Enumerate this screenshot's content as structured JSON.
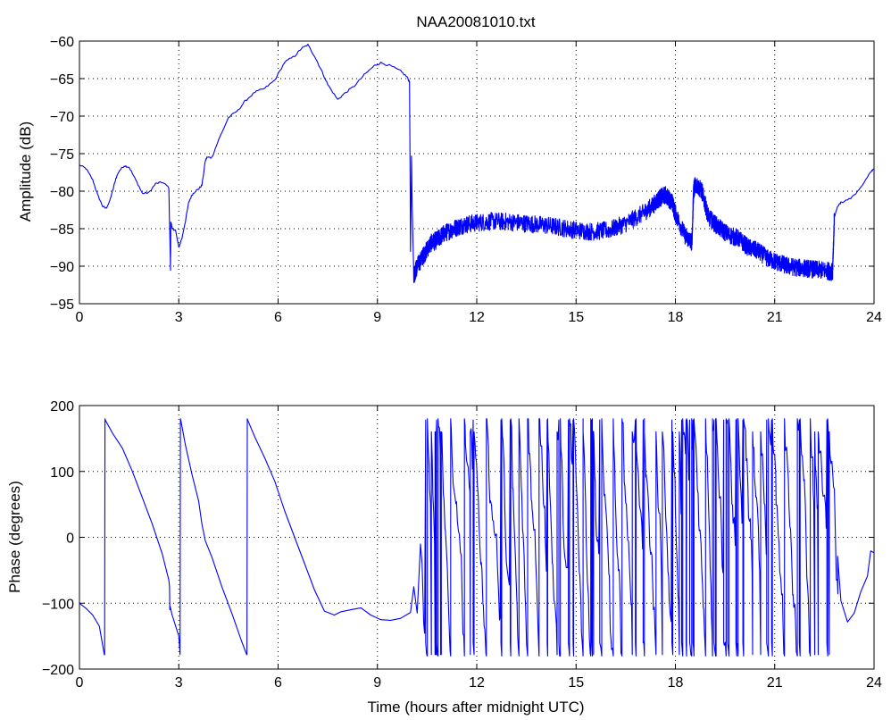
{
  "figure": {
    "title": "NAA20081010.txt"
  },
  "chart_data": [
    {
      "type": "line",
      "title": "NAA20081010.txt",
      "xlabel": "",
      "ylabel": "Amplitude (dB)",
      "xlim": [
        0,
        24
      ],
      "ylim": [
        -95,
        -60
      ],
      "xticks": [
        0,
        3,
        6,
        9,
        12,
        15,
        18,
        21,
        24
      ],
      "yticks": [
        -95,
        -90,
        -85,
        -80,
        -75,
        -70,
        -65,
        -60
      ],
      "grid": true,
      "color": "#0000ff",
      "x": [
        0,
        0.2,
        0.4,
        0.55,
        0.7,
        0.8,
        0.9,
        1.0,
        1.1,
        1.2,
        1.35,
        1.5,
        1.7,
        1.9,
        2.1,
        2.3,
        2.5,
        2.7,
        2.75,
        2.76,
        2.8,
        2.9,
        3.0,
        3.1,
        3.2,
        3.3,
        3.4,
        3.5,
        3.6,
        3.7,
        3.8,
        3.85,
        4.0,
        4.2,
        4.5,
        4.8,
        5.0,
        5.3,
        5.6,
        5.9,
        6.2,
        6.5,
        6.7,
        6.9,
        7.1,
        7.3,
        7.5,
        7.8,
        8.0,
        8.3,
        8.6,
        8.9,
        9.1,
        9.4,
        9.7,
        9.9,
        9.95,
        9.97,
        10.0,
        10.03,
        10.05,
        10.1,
        10.2,
        10.4,
        10.6,
        10.8,
        11.0,
        11.3,
        11.6,
        12.0,
        12.5,
        13.0,
        13.5,
        14.0,
        14.5,
        15.0,
        15.5,
        16.0,
        16.5,
        17.0,
        17.3,
        17.5,
        17.7,
        17.9,
        18.0,
        18.3,
        18.5,
        18.55,
        18.6,
        18.8,
        19.0,
        19.3,
        19.6,
        19.9,
        20.2,
        20.5,
        20.8,
        21.1,
        21.4,
        21.7,
        22.0,
        22.3,
        22.6,
        22.75,
        22.8,
        22.9,
        23.0,
        23.3,
        23.6,
        23.9,
        24.0
      ],
      "y": [
        -76.5,
        -77,
        -78.5,
        -80.5,
        -82,
        -82.3,
        -81.5,
        -80,
        -78.3,
        -77.3,
        -76.6,
        -76.8,
        -78.5,
        -80.3,
        -80.2,
        -79,
        -78.8,
        -79.5,
        -90.5,
        -84,
        -85,
        -85.2,
        -87.5,
        -86.2,
        -84,
        -81.5,
        -80.5,
        -80,
        -79.7,
        -79.2,
        -76,
        -75.5,
        -75.5,
        -73.2,
        -70.2,
        -69.2,
        -68,
        -66.8,
        -66.3,
        -65.2,
        -62.8,
        -62,
        -61,
        -60.5,
        -62,
        -63.8,
        -65.8,
        -67.8,
        -67,
        -66,
        -64.5,
        -63.3,
        -62.9,
        -63.3,
        -64,
        -64.8,
        -65.3,
        -65.5,
        -88,
        -75.3,
        -82,
        -91.2,
        -90,
        -88.5,
        -87,
        -86.5,
        -85.7,
        -85,
        -84.5,
        -84.2,
        -84,
        -84.1,
        -84.3,
        -84.5,
        -84.8,
        -85.2,
        -85.4,
        -85.2,
        -84.3,
        -83,
        -82,
        -81,
        -80.5,
        -81.5,
        -83,
        -86,
        -86.8,
        -80,
        -79,
        -80,
        -83.5,
        -84.8,
        -85.8,
        -86.3,
        -87.5,
        -88,
        -89,
        -89.5,
        -90,
        -90.2,
        -90.3,
        -90.5,
        -90.6,
        -90.8,
        -83.5,
        -82,
        -81.5,
        -81,
        -79.5,
        -77.5,
        -77
      ]
    },
    {
      "type": "line",
      "title": "",
      "xlabel": "Time (hours after midnight UTC)",
      "ylabel": "Phase (degrees)",
      "xlim": [
        0,
        24
      ],
      "ylim": [
        -200,
        200
      ],
      "xticks": [
        0,
        3,
        6,
        9,
        12,
        15,
        18,
        21,
        24
      ],
      "yticks": [
        -200,
        -100,
        0,
        100,
        200
      ],
      "grid": true,
      "color": "#0000ff",
      "x": [
        0,
        0.2,
        0.4,
        0.6,
        0.75,
        0.76,
        0.77,
        0.78,
        1.0,
        1.3,
        1.6,
        1.9,
        2.2,
        2.5,
        2.7,
        2.72,
        2.73,
        2.74,
        2.8,
        3.0,
        3.04,
        3.05,
        3.06,
        3.2,
        3.4,
        3.6,
        3.7,
        3.8,
        4.0,
        4.3,
        4.6,
        4.9,
        5.05,
        5.06,
        5.07,
        5.08,
        5.3,
        5.6,
        5.9,
        6.2,
        6.5,
        6.8,
        7.1,
        7.4,
        7.7,
        7.9,
        8.2,
        8.5,
        8.8,
        9.1,
        9.4,
        9.7,
        10.0,
        10.1,
        10.2,
        10.3,
        10.35
      ],
      "y": [
        -100,
        -108,
        -118,
        -135,
        -178,
        -178,
        180,
        178,
        158,
        135,
        100,
        60,
        20,
        -25,
        -65,
        -75,
        -110,
        -105,
        -118,
        -150,
        -178,
        180,
        178,
        140,
        95,
        55,
        20,
        -5,
        -30,
        -75,
        -115,
        -158,
        -178,
        -178,
        180,
        178,
        152,
        120,
        85,
        40,
        0,
        -40,
        -80,
        -112,
        -118,
        -113,
        -110,
        -107,
        -118,
        -125,
        -126,
        -123,
        -114,
        -75,
        -115,
        -10,
        -40
      ],
      "noisy_segment": {
        "x_start": 10.35,
        "x_end": 22.9,
        "wrap_range": [
          -180,
          180
        ],
        "description_values": "phase wraps repeatedly between -180 and 180"
      },
      "tail_x": [
        22.9,
        23.0,
        23.2,
        23.4,
        23.6,
        23.8,
        23.9,
        24.0
      ],
      "tail_y": [
        -30,
        -100,
        -130,
        -110,
        -80,
        -55,
        -25,
        -20
      ]
    }
  ]
}
